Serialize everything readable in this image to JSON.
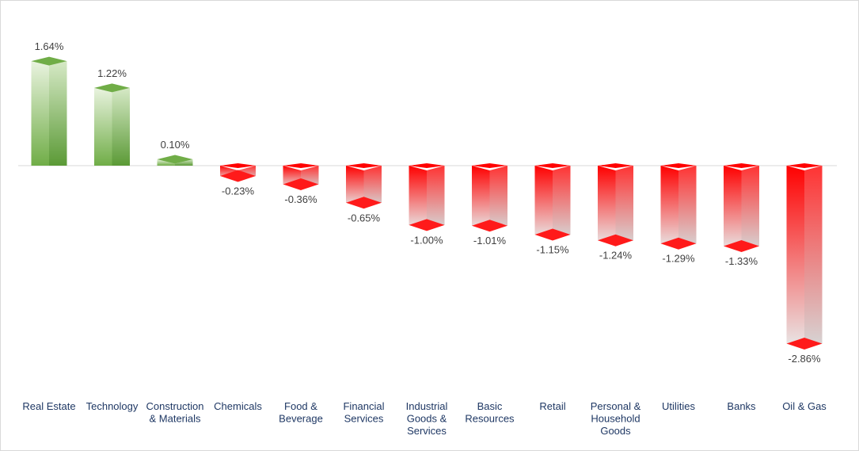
{
  "chart_data": {
    "type": "bar",
    "style": "3d-column",
    "title": "",
    "xlabel": "",
    "ylabel": "",
    "unit": "%",
    "ylim": [
      -2.86,
      1.64
    ],
    "grid": false,
    "legend": "none",
    "colors": {
      "positive_light": "#e9f3df",
      "positive_dark": "#70ad47",
      "negative_light": "#e8e8e8",
      "negative_dark": "#ff0000",
      "axis": "#d9d9d9"
    },
    "categories": [
      [
        "Real Estate"
      ],
      [
        "Technology"
      ],
      [
        "Construction",
        "& Materials"
      ],
      [
        "Chemicals"
      ],
      [
        "Food &",
        "Beverage"
      ],
      [
        "Financial",
        "Services"
      ],
      [
        "Industrial",
        "Goods &",
        "Services"
      ],
      [
        "Basic",
        "Resources"
      ],
      [
        "Retail"
      ],
      [
        "Personal &",
        "Household",
        "Goods"
      ],
      [
        "Utilities"
      ],
      [
        "Banks"
      ],
      [
        "Oil & Gas"
      ]
    ],
    "values": [
      1.64,
      1.22,
      0.1,
      -0.23,
      -0.36,
      -0.65,
      -1.0,
      -1.01,
      -1.15,
      -1.24,
      -1.29,
      -1.33,
      -2.86
    ],
    "value_labels": [
      "1.64%",
      "1.22%",
      "0.10%",
      "-0.23%",
      "-0.36%",
      "-0.65%",
      "-1.00%",
      "-1.01%",
      "-1.15%",
      "-1.24%",
      "-1.29%",
      "-1.33%",
      "-2.86%"
    ]
  }
}
